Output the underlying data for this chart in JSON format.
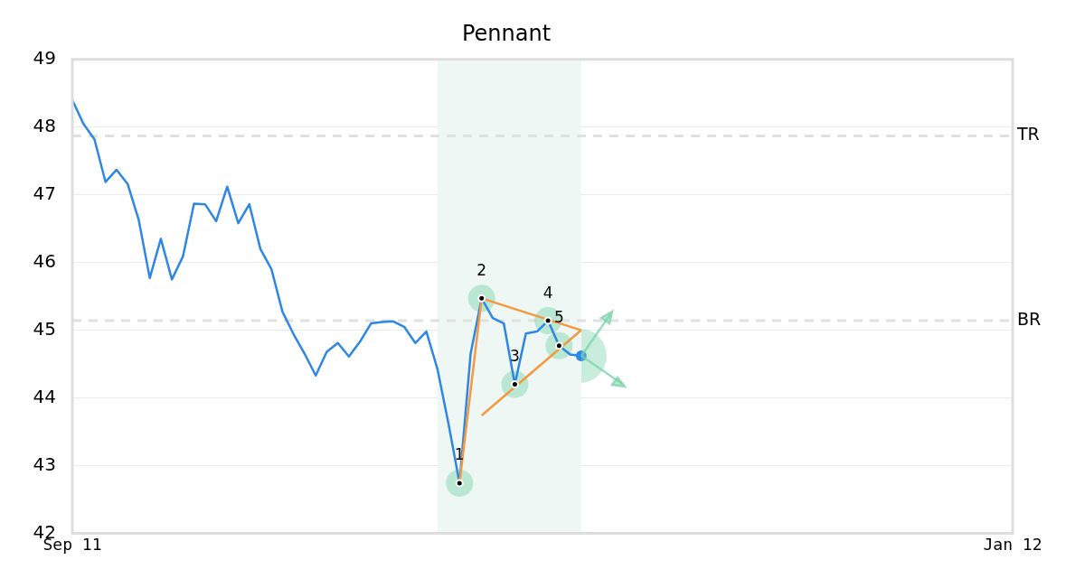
{
  "chart_data": {
    "type": "line",
    "title": "Pennant",
    "categories": [
      "Sep 11",
      null,
      null,
      null,
      null,
      null,
      null,
      null,
      null,
      null,
      null,
      null,
      null,
      null,
      null,
      null,
      null,
      null,
      null,
      null,
      null,
      null,
      null,
      null,
      null,
      null,
      null,
      null,
      null,
      null,
      null,
      null,
      null,
      null,
      null,
      null,
      null,
      null,
      null,
      null,
      null,
      null,
      null,
      null,
      null,
      null,
      null,
      null,
      null,
      null,
      null,
      null,
      null,
      null,
      null,
      null,
      null,
      null,
      null,
      null,
      null,
      null,
      null,
      null,
      null,
      null,
      null,
      null,
      null,
      null,
      null,
      null,
      null,
      null,
      null,
      null,
      null,
      null,
      null,
      null,
      null,
      null,
      null,
      null,
      null,
      "Jan 12"
    ],
    "ylim": [
      42,
      49
    ],
    "yticks": [
      42,
      43,
      44,
      45,
      46,
      47,
      48,
      49
    ],
    "grid": "y",
    "legend": false,
    "series": [
      {
        "color": "#2e86e6",
        "values": [
          48.4,
          48.05,
          47.82,
          47.19,
          47.37,
          47.16,
          46.63,
          45.77,
          46.35,
          45.75,
          46.09,
          46.87,
          46.86,
          46.61,
          47.12,
          46.58,
          46.86,
          46.2,
          45.9,
          45.27,
          44.94,
          44.65,
          44.33,
          44.68,
          44.81,
          44.61,
          44.83,
          45.1,
          45.12,
          45.13,
          45.05,
          44.81,
          44.98,
          44.43,
          43.62,
          42.74,
          44.65,
          45.47,
          45.18,
          45.1,
          44.2,
          44.95,
          44.98,
          45.14,
          44.77,
          44.64,
          44.62,
          null,
          null,
          null,
          null,
          null,
          null,
          null,
          null,
          null,
          null,
          null,
          null,
          null,
          null,
          null,
          null,
          null,
          null,
          null,
          null,
          null,
          null,
          null,
          null,
          null,
          null,
          null,
          null,
          null,
          null,
          null,
          null,
          null,
          null,
          null,
          null,
          null,
          null,
          null
        ]
      },
      {
        "color": "#f5993f",
        "values": [
          null,
          null,
          null,
          null,
          null,
          null,
          null,
          null,
          null,
          null,
          null,
          null,
          null,
          null,
          null,
          null,
          null,
          null,
          null,
          null,
          null,
          null,
          null,
          null,
          null,
          null,
          null,
          null,
          null,
          null,
          null,
          null,
          null,
          null,
          null,
          42.74,
          null,
          45.47,
          null,
          null,
          null,
          null,
          null,
          null,
          null,
          null,
          45.0,
          null,
          null,
          null,
          null,
          null,
          null,
          null,
          null,
          null,
          null,
          null,
          null,
          null,
          null,
          null,
          null,
          null,
          null,
          null,
          null,
          null,
          null,
          null,
          null,
          null,
          null,
          null,
          null,
          null,
          null,
          null,
          null,
          null,
          null,
          null,
          null,
          null,
          null,
          null
        ]
      },
      {
        "color": "#f5993f",
        "values": [
          null,
          null,
          null,
          null,
          null,
          null,
          null,
          null,
          null,
          null,
          null,
          null,
          null,
          null,
          null,
          null,
          null,
          null,
          null,
          null,
          null,
          null,
          null,
          null,
          null,
          null,
          null,
          null,
          null,
          null,
          null,
          null,
          null,
          null,
          null,
          null,
          null,
          43.74,
          null,
          null,
          null,
          null,
          null,
          null,
          null,
          null,
          45.0,
          null,
          null,
          null,
          null,
          null,
          null,
          null,
          null,
          null,
          null,
          null,
          null,
          null,
          null,
          null,
          null,
          null,
          null,
          null,
          null,
          null,
          null,
          null,
          null,
          null,
          null,
          null,
          null,
          null,
          null,
          null,
          null,
          null,
          null,
          null,
          null,
          null,
          null,
          null
        ]
      },
      {
        "type": "scatter",
        "color": "#000000",
        "values": [
          null,
          null,
          null,
          null,
          null,
          null,
          null,
          null,
          null,
          null,
          null,
          null,
          null,
          null,
          null,
          null,
          null,
          null,
          null,
          null,
          null,
          null,
          null,
          null,
          null,
          null,
          null,
          null,
          null,
          null,
          null,
          null,
          null,
          null,
          null,
          42.74,
          null,
          45.47,
          null,
          null,
          44.2,
          null,
          null,
          45.14,
          44.77,
          null,
          null,
          null,
          null,
          null,
          null,
          null,
          null,
          null,
          null,
          null,
          null,
          null,
          null,
          null,
          null,
          null,
          null,
          null,
          null,
          null,
          null,
          null,
          null,
          null,
          null,
          null,
          null,
          null,
          null,
          null,
          null,
          null,
          null,
          null,
          null,
          null,
          null,
          null,
          null,
          null
        ]
      }
    ],
    "annotations": [
      "1",
      "2",
      "3",
      "4",
      "5"
    ],
    "ref_lines": [
      {
        "axis": "y",
        "value": 47.87,
        "label": "TR",
        "color": "#e0e0e0",
        "line_style": "dashed"
      },
      {
        "axis": "y",
        "value": 45.14,
        "label": "BR",
        "color": "#e0e0e0",
        "line_style": "dashed"
      }
    ]
  }
}
